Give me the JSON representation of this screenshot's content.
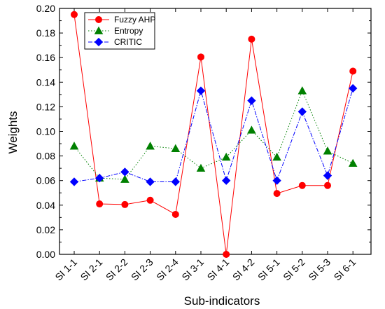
{
  "chart_data": {
    "type": "line",
    "categories": [
      "SI 1-1",
      "SI 2-1",
      "SI 2-2",
      "SI 2-3",
      "SI 2-4",
      "SI 3-1",
      "SI 4-1",
      "SI 4-2",
      "SI 5-1",
      "SI 5-2",
      "SI 5-3",
      "SI 6-1"
    ],
    "xlabel": "Sub-indicators",
    "ylabel": "Weights",
    "ylim": [
      0.0,
      0.2
    ],
    "yticks": [
      "0.00",
      "0.02",
      "0.04",
      "0.06",
      "0.08",
      "0.10",
      "0.12",
      "0.14",
      "0.16",
      "0.18",
      "0.20"
    ],
    "grid": false,
    "legend_position": "top-left",
    "series": [
      {
        "name": "Fuzzy AHP",
        "color": "#ff0000",
        "marker": "circle",
        "line_style": "solid",
        "values": [
          0.195,
          0.041,
          0.0405,
          0.044,
          0.0325,
          0.1605,
          0.0,
          0.175,
          0.0495,
          0.056,
          0.056,
          0.149
        ]
      },
      {
        "name": "Entropy",
        "color": "#008000",
        "marker": "triangle",
        "line_style": "dotted",
        "values": [
          0.088,
          0.062,
          0.061,
          0.088,
          0.086,
          0.07,
          0.079,
          0.101,
          0.079,
          0.133,
          0.084,
          0.074
        ]
      },
      {
        "name": "CRITIC",
        "color": "#0000ff",
        "marker": "diamond",
        "line_style": "dashdot",
        "values": [
          0.059,
          0.062,
          0.067,
          0.059,
          0.059,
          0.133,
          0.06,
          0.125,
          0.06,
          0.116,
          0.064,
          0.135
        ]
      }
    ]
  }
}
